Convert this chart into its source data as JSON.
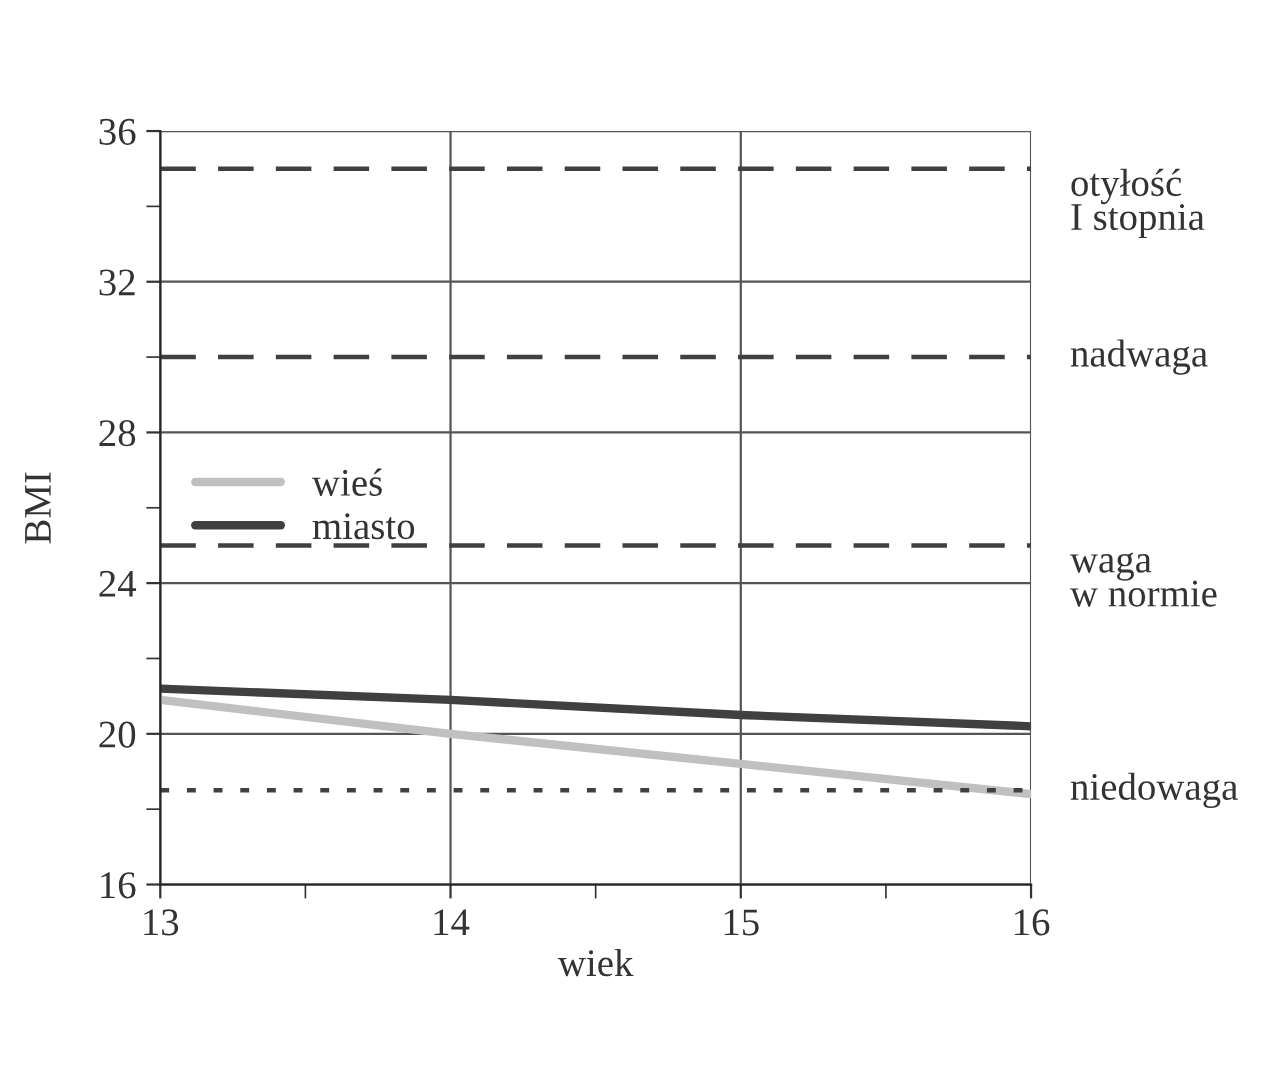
{
  "chart_data": {
    "type": "line",
    "xlabel": "wiek",
    "ylabel": "BMI",
    "x": [
      13,
      14,
      15,
      16
    ],
    "series": [
      {
        "name": "wieś",
        "color": "#c0c0c0",
        "values": [
          20.9,
          20.0,
          19.2,
          18.4
        ]
      },
      {
        "name": "miasto",
        "color": "#404040",
        "values": [
          21.2,
          20.9,
          20.5,
          20.2
        ]
      }
    ],
    "xlim": [
      13,
      16
    ],
    "xticks": [
      13,
      14,
      15,
      16
    ],
    "ylim": [
      16,
      36
    ],
    "yticks": [
      16,
      20,
      24,
      28,
      32,
      36
    ],
    "ref_lines": [
      {
        "axis": "y",
        "value": 35,
        "label": "otyłość\nI stopnia",
        "color": "#404040",
        "line_style": "dashed"
      },
      {
        "axis": "y",
        "value": 30,
        "label": "nadwaga",
        "color": "#404040",
        "line_style": "dashed"
      },
      {
        "axis": "y",
        "value": 25,
        "label": "waga\nw normie",
        "color": "#404040",
        "line_style": "dashed"
      },
      {
        "axis": "y",
        "value": 18.5,
        "label": "niedowaga",
        "color": "#404040",
        "line_style": "dotted"
      }
    ],
    "grid": true,
    "legend": "left",
    "marker": "none",
    "line_style": "solid"
  }
}
